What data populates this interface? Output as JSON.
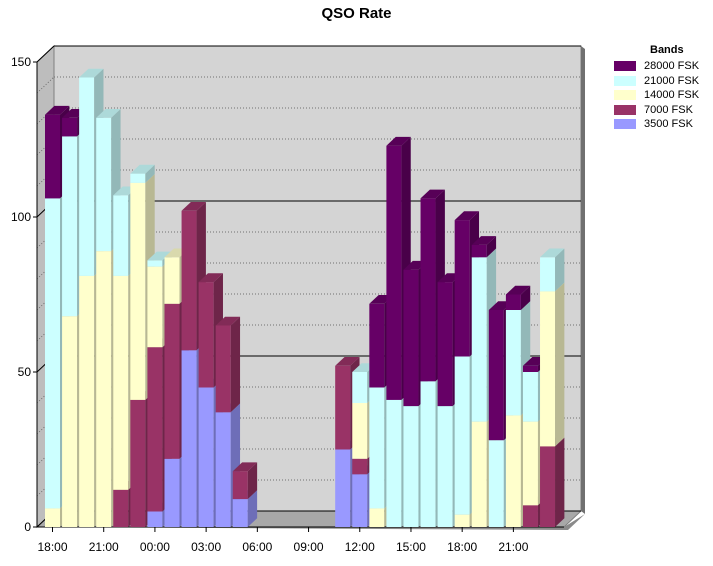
{
  "chart_data": {
    "type": "bar",
    "stacked": true,
    "three_d": true,
    "title": "QSO Rate",
    "xlabel": "",
    "ylabel": "",
    "ylim": [
      0,
      150
    ],
    "yticks": [
      0,
      50,
      100,
      150
    ],
    "grid": true,
    "legend_title": "Bands",
    "legend_position": "right",
    "xticks": [
      "18:00",
      "21:00",
      "00:00",
      "03:00",
      "06:00",
      "09:00",
      "12:00",
      "15:00",
      "18:00",
      "21:00"
    ],
    "categories": [
      "18:00",
      "19:00",
      "20:00",
      "21:00",
      "22:00",
      "23:00",
      "00:00",
      "01:00",
      "02:00",
      "03:00",
      "04:00",
      "05:00",
      "06:00",
      "07:00",
      "08:00",
      "09:00",
      "10:00",
      "11:00",
      "12:00",
      "13:00",
      "14:00",
      "15:00",
      "16:00",
      "17:00",
      "18:00",
      "19:00",
      "20:00",
      "21:00",
      "22:00",
      "23:00"
    ],
    "series": [
      {
        "name": "3500 FSK",
        "color": "#9999ff",
        "values": [
          0,
          0,
          0,
          0,
          0,
          0,
          5,
          22,
          57,
          45,
          37,
          9,
          0,
          0,
          0,
          0,
          0,
          25,
          17,
          0,
          0,
          0,
          0,
          0,
          0,
          0,
          0,
          0,
          0,
          0
        ]
      },
      {
        "name": "7000 FSK",
        "color": "#993366",
        "values": [
          0,
          0,
          0,
          0,
          12,
          41,
          53,
          50,
          45,
          34,
          28,
          9,
          0,
          0,
          0,
          0,
          0,
          27,
          5,
          0,
          0,
          0,
          0,
          0,
          0,
          0,
          0,
          0,
          7,
          26
        ]
      },
      {
        "name": "14000 FSK",
        "color": "#ffffcc",
        "values": [
          6,
          68,
          81,
          89,
          69,
          70,
          26,
          15,
          0,
          0,
          0,
          0,
          0,
          0,
          0,
          0,
          0,
          0,
          18,
          6,
          0,
          0,
          0,
          0,
          4,
          34,
          0,
          36,
          27,
          50
        ]
      },
      {
        "name": "21000 FSK",
        "color": "#ccffff",
        "values": [
          100,
          58,
          64,
          43,
          26,
          3,
          2,
          0,
          0,
          0,
          0,
          0,
          0,
          0,
          0,
          0,
          0,
          0,
          10,
          39,
          41,
          39,
          47,
          39,
          51,
          53,
          28,
          34,
          16,
          11
        ]
      },
      {
        "name": "28000 FSK",
        "color": "#660066",
        "values": [
          27,
          6,
          0,
          0,
          0,
          0,
          0,
          0,
          0,
          0,
          0,
          0,
          0,
          0,
          0,
          0,
          0,
          0,
          0,
          27,
          82,
          44,
          59,
          40,
          44,
          4,
          42,
          5,
          2,
          0
        ]
      }
    ]
  }
}
